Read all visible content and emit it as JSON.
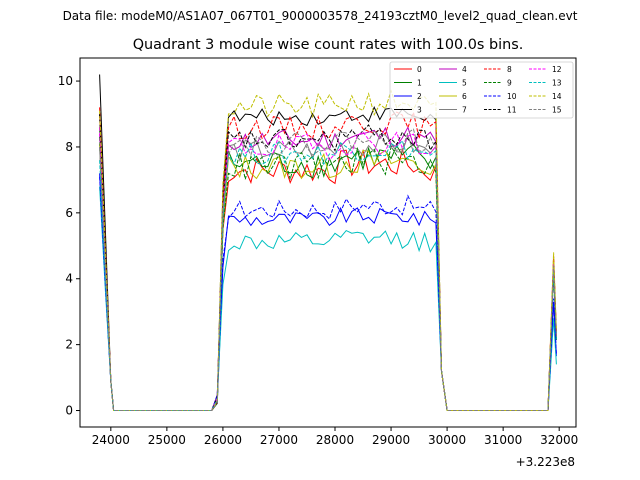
{
  "header": {
    "file_text": "Data file: modeM0/AS1A07_067T01_9000003578_24193cztM0_level2_quad_clean.evt"
  },
  "chart_data": {
    "type": "line",
    "title": "Quadrant 3 module wise count rates with 100.0s bins.",
    "xlabel": "",
    "ylabel": "",
    "x_offset_label": "+3.223e8",
    "xlim": [
      23450,
      32300
    ],
    "ylim": [
      -0.5,
      10.7
    ],
    "x_ticks": [
      24000,
      25000,
      26000,
      27000,
      28000,
      29000,
      30000,
      31000,
      32000
    ],
    "y_ticks": [
      0,
      2,
      4,
      6,
      8,
      10
    ],
    "grid": false,
    "legend": {
      "placement": "top-right",
      "columns": 4
    },
    "segments": [
      {
        "x_start": 23800,
        "x_end": 24100,
        "shape": "drop"
      },
      {
        "x_start": 24000,
        "x_end": 25900,
        "shape": "zero"
      },
      {
        "x_start": 25900,
        "x_end": 26100,
        "shape": "rise"
      },
      {
        "x_start": 26100,
        "x_end": 29800,
        "shape": "plateau"
      },
      {
        "x_start": 29800,
        "x_end": 30000,
        "shape": "fall"
      },
      {
        "x_start": 30000,
        "x_end": 31800,
        "shape": "zero"
      },
      {
        "x_start": 31800,
        "x_end": 31900,
        "shape": "spike"
      }
    ],
    "series": [
      {
        "name": "0",
        "color": "#ff0000",
        "dash": false,
        "start": 9.0,
        "level": 7.3,
        "noise": 0.45,
        "end": 4.6
      },
      {
        "name": "1",
        "color": "#008000",
        "dash": false,
        "start": 8.6,
        "level": 7.5,
        "noise": 0.45,
        "end": 4.5
      },
      {
        "name": "2",
        "color": "#0000ff",
        "dash": false,
        "start": 7.2,
        "level": 5.8,
        "noise": 0.25,
        "end": 3.3
      },
      {
        "name": "3",
        "color": "#000000",
        "dash": false,
        "start": 10.2,
        "level": 8.9,
        "noise": 0.25,
        "end": 4.3
      },
      {
        "name": "4",
        "color": "#bf00bf",
        "dash": false,
        "start": 8.4,
        "level": 8.2,
        "noise": 0.35,
        "end": 4.4
      },
      {
        "name": "5",
        "color": "#00bfbf",
        "dash": false,
        "start": 6.8,
        "level": 5.1,
        "noise": 0.3,
        "end": 2.8
      },
      {
        "name": "6",
        "color": "#bfbf00",
        "dash": false,
        "start": 8.1,
        "level": 7.4,
        "noise": 0.4,
        "end": 4.6
      },
      {
        "name": "7",
        "color": "#808080",
        "dash": false,
        "start": 8.0,
        "level": 7.9,
        "noise": 0.35,
        "end": 4.4
      },
      {
        "name": "8",
        "color": "#ff0000",
        "dash": true,
        "start": 9.2,
        "level": 8.6,
        "noise": 0.35,
        "end": 4.7
      },
      {
        "name": "9",
        "color": "#008000",
        "dash": true,
        "start": 8.3,
        "level": 7.4,
        "noise": 0.45,
        "end": 4.4
      },
      {
        "name": "10",
        "color": "#0000ff",
        "dash": true,
        "start": 7.1,
        "level": 6.1,
        "noise": 0.3,
        "end": 3.4
      },
      {
        "name": "11",
        "color": "#000000",
        "dash": true,
        "start": 9.0,
        "level": 8.2,
        "noise": 0.35,
        "end": 4.2
      },
      {
        "name": "12",
        "color": "#ff00ff",
        "dash": true,
        "start": 8.6,
        "level": 8.0,
        "noise": 0.4,
        "end": 4.5
      },
      {
        "name": "13",
        "color": "#00bfbf",
        "dash": true,
        "start": 7.6,
        "level": 7.8,
        "noise": 0.35,
        "end": 4.3
      },
      {
        "name": "14",
        "color": "#bfbf00",
        "dash": true,
        "start": 9.1,
        "level": 9.2,
        "noise": 0.4,
        "end": 4.8
      },
      {
        "name": "15",
        "color": "#808080",
        "dash": true,
        "start": 8.0,
        "level": 8.1,
        "noise": 0.35,
        "end": 4.4
      }
    ]
  }
}
